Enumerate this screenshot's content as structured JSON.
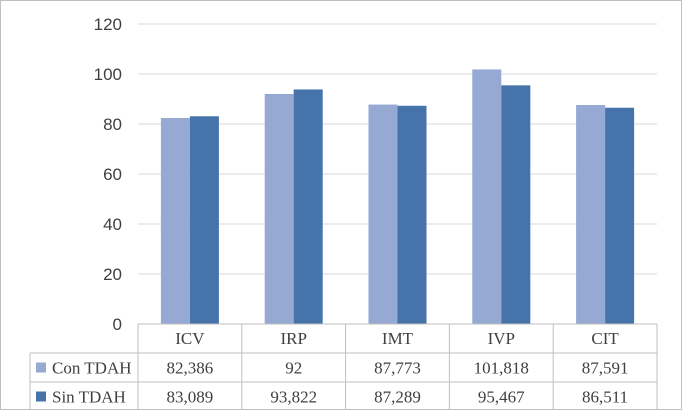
{
  "chart_data": {
    "type": "bar",
    "categories": [
      "ICV",
      "IRP",
      "IMT",
      "IVP",
      "CIT"
    ],
    "series": [
      {
        "name": "Con TDAH",
        "values": [
          82.386,
          92,
          87.773,
          101.818,
          87.591
        ],
        "labels": [
          "82,386",
          "92",
          "87,773",
          "101,818",
          "87,591"
        ],
        "color": "#95a9d2"
      },
      {
        "name": "Sin TDAH",
        "values": [
          83.089,
          93.822,
          87.289,
          95.467,
          86.511
        ],
        "labels": [
          "83,089",
          "93,822",
          "87,289",
          "95,467",
          "86,511"
        ],
        "color": "#4673aa"
      }
    ],
    "yticks": [
      "0",
      "20",
      "40",
      "60",
      "80",
      "100",
      "120"
    ],
    "ylim": [
      0,
      120
    ],
    "grid": true,
    "legend": "data-table",
    "title": "",
    "xlabel": "",
    "ylabel": ""
  },
  "colors": {
    "grid": "#d9d9d9",
    "table_border": "#bfbfbf",
    "frame": "#bfbfbf",
    "text": "#404040"
  }
}
